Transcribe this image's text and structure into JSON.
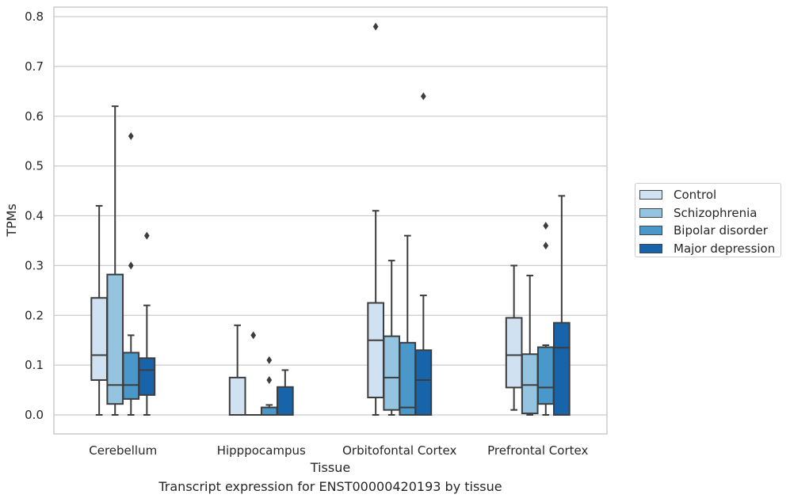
{
  "chart_data": {
    "type": "box",
    "xlabel": "Tissue",
    "ylabel": "TPMs",
    "ylim": [
      -0.04,
      0.82
    ],
    "yticks": [
      0.0,
      0.1,
      0.2,
      0.3,
      0.4,
      0.5,
      0.6,
      0.7,
      0.8
    ],
    "ytick_labels": [
      "0.0",
      "0.1",
      "0.2",
      "0.3",
      "0.4",
      "0.5",
      "0.6",
      "0.7",
      "0.8"
    ],
    "grid": "horizontal",
    "legend_placement": "right",
    "categories": [
      "Cerebellum",
      "Hipppocampus",
      "Orbitofontal Cortex",
      "Prefrontal Cortex"
    ],
    "series": [
      {
        "name": "Control",
        "color": "#d0e1f2",
        "boxes": [
          {
            "whislo": 0.0,
            "q1": 0.07,
            "med": 0.12,
            "q3": 0.235,
            "whishi": 0.42,
            "fliers": []
          },
          {
            "whislo": 0.0,
            "q1": 0.0,
            "med": 0.0,
            "q3": 0.075,
            "whishi": 0.18,
            "fliers": []
          },
          {
            "whislo": 0.0,
            "q1": 0.035,
            "med": 0.15,
            "q3": 0.225,
            "whishi": 0.41,
            "fliers": [
              0.78
            ]
          },
          {
            "whislo": 0.01,
            "q1": 0.055,
            "med": 0.12,
            "q3": 0.195,
            "whishi": 0.3,
            "fliers": []
          }
        ]
      },
      {
        "name": "Schizophrenia",
        "color": "#94c4df",
        "boxes": [
          {
            "whislo": 0.0,
            "q1": 0.022,
            "med": 0.06,
            "q3": 0.282,
            "whishi": 0.62,
            "fliers": []
          },
          {
            "whislo": 0.0,
            "q1": 0.0,
            "med": 0.0,
            "q3": 0.0,
            "whishi": 0.0,
            "fliers": [
              0.16
            ]
          },
          {
            "whislo": 0.0,
            "q1": 0.01,
            "med": 0.075,
            "q3": 0.158,
            "whishi": 0.31,
            "fliers": []
          },
          {
            "whislo": 0.0,
            "q1": 0.003,
            "med": 0.06,
            "q3": 0.122,
            "whishi": 0.28,
            "fliers": []
          }
        ]
      },
      {
        "name": "Bipolar disorder",
        "color": "#4a98c9",
        "boxes": [
          {
            "whislo": 0.0,
            "q1": 0.032,
            "med": 0.06,
            "q3": 0.125,
            "whishi": 0.16,
            "fliers": [
              0.3,
              0.56
            ]
          },
          {
            "whislo": 0.0,
            "q1": 0.0,
            "med": 0.0,
            "q3": 0.015,
            "whishi": 0.02,
            "fliers": [
              0.07,
              0.11
            ]
          },
          {
            "whislo": 0.0,
            "q1": 0.0,
            "med": 0.015,
            "q3": 0.145,
            "whishi": 0.36,
            "fliers": []
          },
          {
            "whislo": 0.0,
            "q1": 0.022,
            "med": 0.055,
            "q3": 0.136,
            "whishi": 0.14,
            "fliers": [
              0.34,
              0.38
            ]
          }
        ]
      },
      {
        "name": "Major depression",
        "color": "#1764ab",
        "boxes": [
          {
            "whislo": 0.0,
            "q1": 0.04,
            "med": 0.09,
            "q3": 0.114,
            "whishi": 0.22,
            "fliers": [
              0.36
            ]
          },
          {
            "whislo": 0.0,
            "q1": 0.0,
            "med": 0.0,
            "q3": 0.056,
            "whishi": 0.09,
            "fliers": []
          },
          {
            "whislo": 0.0,
            "q1": 0.0,
            "med": 0.07,
            "q3": 0.13,
            "whishi": 0.24,
            "fliers": [
              0.64
            ]
          },
          {
            "whislo": 0.0,
            "q1": 0.0,
            "med": 0.135,
            "q3": 0.185,
            "whishi": 0.44,
            "fliers": []
          }
        ]
      }
    ],
    "caption": "Transcript expression for ENST00000420193 by tissue"
  }
}
